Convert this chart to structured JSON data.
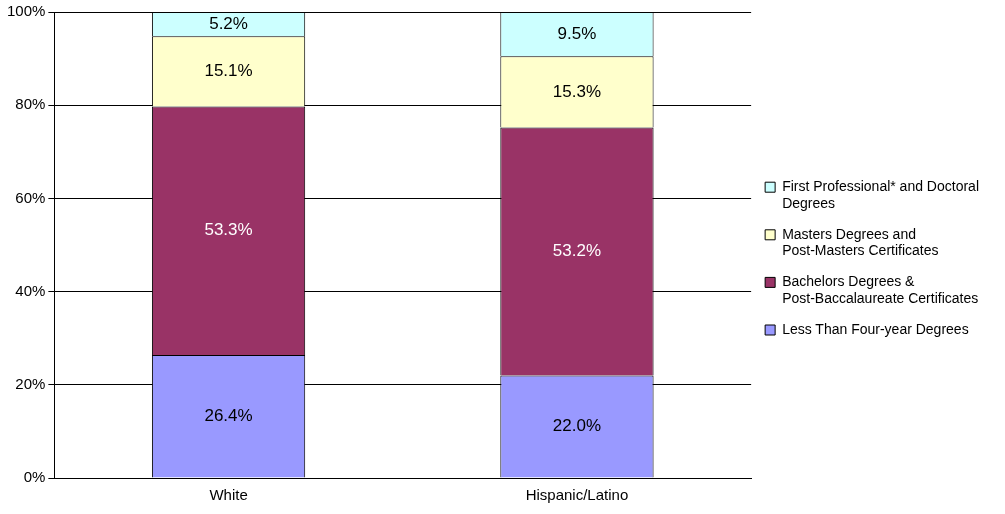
{
  "chart_data": {
    "type": "bar",
    "stacked": true,
    "categories": [
      "White",
      "Hispanic/Latino"
    ],
    "series": [
      {
        "name": "Less Than Four-year Degrees",
        "color": "#9999ff",
        "values": [
          26.4,
          22.0
        ]
      },
      {
        "name": "Bachelors Degrees & Post-Baccalaureate Certificates",
        "color": "#993366",
        "values": [
          53.3,
          53.2
        ]
      },
      {
        "name": "Masters Degrees and Post-Masters Certificates",
        "color": "#ffffcc",
        "values": [
          15.1,
          15.3
        ]
      },
      {
        "name": "First Professional* and Doctoral Degrees",
        "color": "#ccffff",
        "values": [
          5.2,
          9.5
        ]
      }
    ],
    "value_labels": [
      [
        "26.4%",
        "22.0%"
      ],
      [
        "53.3%",
        "53.2%"
      ],
      [
        "15.1%",
        "15.3%"
      ],
      [
        "5.2%",
        "9.5%"
      ]
    ],
    "ylim": [
      0,
      100
    ],
    "yticks": [
      {
        "value": 0,
        "label": "0%"
      },
      {
        "value": 20,
        "label": "20%"
      },
      {
        "value": 40,
        "label": "40%"
      },
      {
        "value": 60,
        "label": "60%"
      },
      {
        "value": 80,
        "label": "80%"
      },
      {
        "value": 100,
        "label": "100%"
      }
    ],
    "grid": "y",
    "legend": "right"
  }
}
